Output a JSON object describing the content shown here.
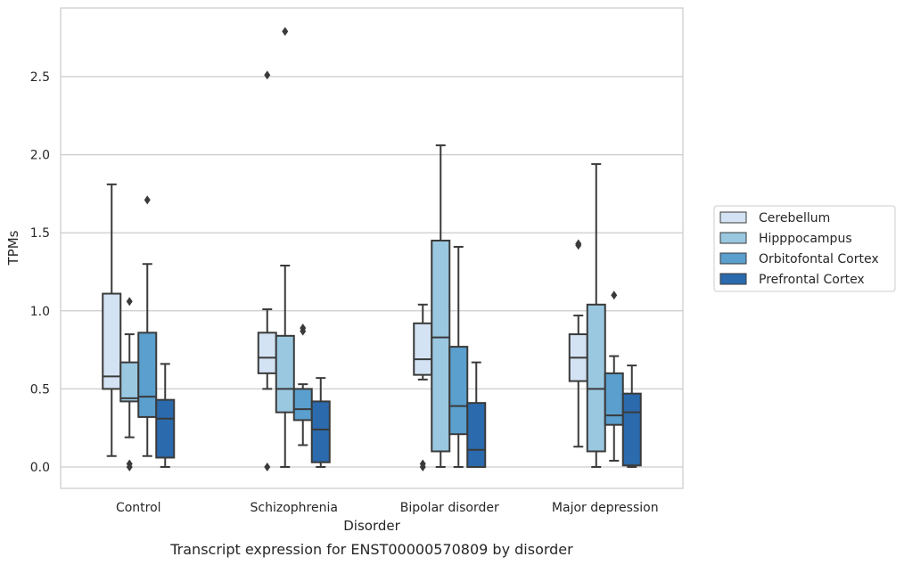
{
  "chart_data": {
    "type": "box",
    "caption": "Transcript expression for ENST00000570809 by disorder",
    "xlabel": "Disorder",
    "ylabel": "TPMs",
    "ylim": [
      -0.13,
      2.95
    ],
    "yticks": [
      "0.0",
      "0.5",
      "1.0",
      "1.5",
      "2.0",
      "2.5"
    ],
    "grid": true,
    "legend_position": "right",
    "categories": [
      "Control",
      "Schizophrenia",
      "Bipolar disorder",
      "Major depression"
    ],
    "series": [
      {
        "name": "Cerebellum",
        "color": "#d3e3f3",
        "boxes": [
          {
            "whisker_low": 0.07,
            "q1": 0.5,
            "median": 0.58,
            "q3": 1.11,
            "whisker_high": 1.81,
            "outliers": []
          },
          {
            "whisker_low": 0.5,
            "q1": 0.6,
            "median": 0.7,
            "q3": 0.86,
            "whisker_high": 1.01,
            "outliers": [
              0.0,
              2.51
            ]
          },
          {
            "whisker_low": 0.56,
            "q1": 0.59,
            "median": 0.69,
            "q3": 0.92,
            "whisker_high": 1.04,
            "outliers": [
              0.0,
              0.02
            ]
          },
          {
            "whisker_low": 0.13,
            "q1": 0.55,
            "median": 0.7,
            "q3": 0.85,
            "whisker_high": 0.97,
            "outliers": [
              1.42,
              1.43
            ]
          }
        ]
      },
      {
        "name": "Hipppocampus",
        "color": "#9ac8e0",
        "boxes": [
          {
            "whisker_low": 0.19,
            "q1": 0.42,
            "median": 0.44,
            "q3": 0.67,
            "whisker_high": 0.85,
            "outliers": [
              0.0,
              0.02,
              1.06
            ]
          },
          {
            "whisker_low": 0.0,
            "q1": 0.35,
            "median": 0.5,
            "q3": 0.84,
            "whisker_high": 1.29,
            "outliers": [
              2.79
            ]
          },
          {
            "whisker_low": 0.0,
            "q1": 0.1,
            "median": 0.83,
            "q3": 1.45,
            "whisker_high": 2.06,
            "outliers": []
          },
          {
            "whisker_low": 0.0,
            "q1": 0.1,
            "median": 0.5,
            "q3": 1.04,
            "whisker_high": 1.94,
            "outliers": []
          }
        ]
      },
      {
        "name": "Orbitofontal Cortex",
        "color": "#5a9fcd",
        "boxes": [
          {
            "whisker_low": 0.07,
            "q1": 0.32,
            "median": 0.45,
            "q3": 0.86,
            "whisker_high": 1.3,
            "outliers": [
              1.71
            ]
          },
          {
            "whisker_low": 0.14,
            "q1": 0.3,
            "median": 0.37,
            "q3": 0.5,
            "whisker_high": 0.53,
            "outliers": [
              0.87,
              0.89
            ]
          },
          {
            "whisker_low": 0.0,
            "q1": 0.21,
            "median": 0.39,
            "q3": 0.77,
            "whisker_high": 1.41,
            "outliers": []
          },
          {
            "whisker_low": 0.04,
            "q1": 0.27,
            "median": 0.33,
            "q3": 0.6,
            "whisker_high": 0.71,
            "outliers": [
              1.1
            ]
          }
        ]
      },
      {
        "name": "Prefrontal Cortex",
        "color": "#2a6aad",
        "boxes": [
          {
            "whisker_low": 0.0,
            "q1": 0.06,
            "median": 0.31,
            "q3": 0.43,
            "whisker_high": 0.66,
            "outliers": []
          },
          {
            "whisker_low": 0.0,
            "q1": 0.03,
            "median": 0.24,
            "q3": 0.42,
            "whisker_high": 0.57,
            "outliers": []
          },
          {
            "whisker_low": 0.0,
            "q1": 0.0,
            "median": 0.11,
            "q3": 0.41,
            "whisker_high": 0.67,
            "outliers": []
          },
          {
            "whisker_low": 0.0,
            "q1": 0.01,
            "median": 0.35,
            "q3": 0.47,
            "whisker_high": 0.65,
            "outliers": []
          }
        ]
      }
    ]
  }
}
